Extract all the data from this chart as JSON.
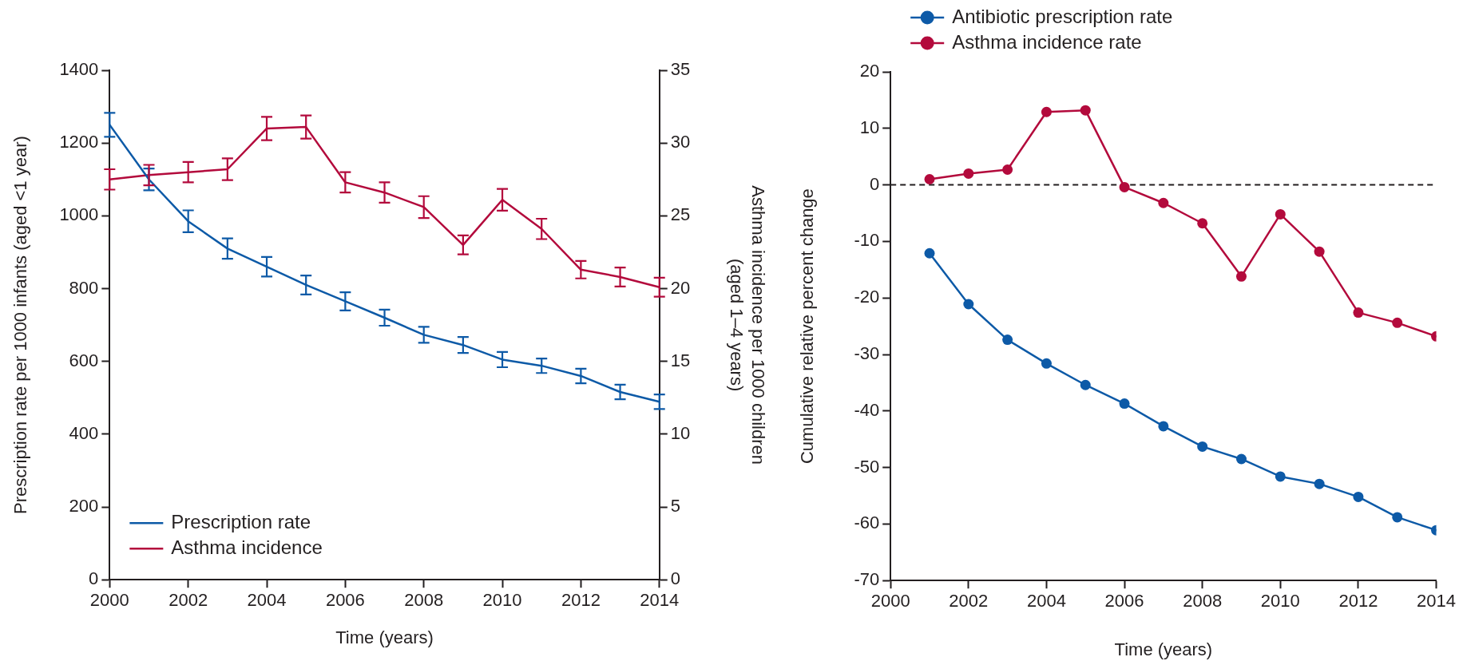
{
  "chart_data": [
    {
      "type": "line",
      "xlabel": "Time (years)",
      "ylabel": "Prescription rate per 1000 infants (aged <1 year)",
      "y2label": "Asthma incidence per 1000 children (aged 1–4 years)",
      "x": [
        2000,
        2001,
        2002,
        2003,
        2004,
        2005,
        2006,
        2007,
        2008,
        2009,
        2010,
        2011,
        2012,
        2013,
        2014
      ],
      "xlim": [
        2000,
        2014
      ],
      "xticks": [
        2000,
        2002,
        2004,
        2006,
        2008,
        2010,
        2012,
        2014
      ],
      "ylim": [
        0,
        1400
      ],
      "yticks": [
        0,
        200,
        400,
        600,
        800,
        1000,
        1200,
        1400
      ],
      "y2lim": [
        0,
        35
      ],
      "y2ticks": [
        0,
        5,
        10,
        15,
        20,
        25,
        30,
        35
      ],
      "legend": "bottom left",
      "marker": "none",
      "series": [
        {
          "name": "Prescription rate",
          "color": "#0d5aa7",
          "values": [
            1250,
            1100,
            985,
            910,
            860,
            810,
            765,
            720,
            673,
            645,
            605,
            588,
            560,
            516,
            489
          ],
          "errors": [
            33,
            30,
            30,
            28,
            27,
            26,
            25,
            22,
            22,
            22,
            21,
            20,
            20,
            20,
            20
          ]
        },
        {
          "name": "Asthma incidence",
          "color": "#b30a3c",
          "axis": "y2",
          "values": [
            27.5,
            27.8,
            28.0,
            28.2,
            31.0,
            31.1,
            27.3,
            26.6,
            25.6,
            23.0,
            26.1,
            24.1,
            21.3,
            20.8,
            20.1
          ],
          "errors": [
            0.7,
            0.7,
            0.7,
            0.75,
            0.8,
            0.8,
            0.7,
            0.7,
            0.75,
            0.65,
            0.75,
            0.7,
            0.6,
            0.65,
            0.65
          ]
        }
      ]
    },
    {
      "type": "line",
      "xlabel": "Time (years)",
      "ylabel": "Cumulative relative percent change",
      "x": [
        2001,
        2002,
        2003,
        2004,
        2005,
        2006,
        2007,
        2008,
        2009,
        2010,
        2011,
        2012,
        2013,
        2014
      ],
      "xlim": [
        2000,
        2014
      ],
      "xticks": [
        2000,
        2002,
        2004,
        2006,
        2008,
        2010,
        2012,
        2014
      ],
      "ylim": [
        -70,
        20
      ],
      "yticks": [
        -70,
        -60,
        -50,
        -40,
        -30,
        -20,
        -10,
        0,
        10,
        20
      ],
      "legend": "top left",
      "marker": "circle",
      "ref_lines": [
        {
          "axis": "y",
          "value": 0,
          "color": "#231f20",
          "line_style": "dashed"
        }
      ],
      "series": [
        {
          "name": "Antibiotic prescription rate",
          "color": "#0d5aa7",
          "values": [
            -12.1,
            -21.1,
            -27.4,
            -31.6,
            -35.4,
            -38.7,
            -42.7,
            -46.3,
            -48.5,
            -51.6,
            -52.9,
            -55.2,
            -58.8,
            -61.1
          ]
        },
        {
          "name": "Asthma incidence rate",
          "color": "#b30a3c",
          "values": [
            1.0,
            2.0,
            2.7,
            12.9,
            13.2,
            -0.4,
            -3.2,
            -6.8,
            -16.2,
            -5.2,
            -11.8,
            -22.6,
            -24.4,
            -26.8
          ]
        }
      ]
    }
  ]
}
